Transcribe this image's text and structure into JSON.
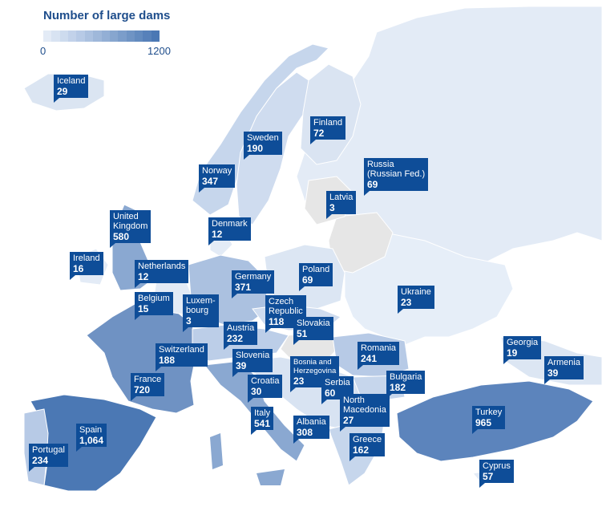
{
  "legend": {
    "title": "Number of large dams",
    "min": "0",
    "max": "1200",
    "color_low": "#e3ebf6",
    "color_high": "#4b78b4"
  },
  "colors": {
    "label_bg": "#0e4d98",
    "no_data": "#e6e6e6",
    "background": "#ffffff"
  },
  "countries": [
    {
      "name": "Iceland",
      "value": "29"
    },
    {
      "name": "Finland",
      "value": "72"
    },
    {
      "name": "Sweden",
      "value": "190"
    },
    {
      "name": "Russia\n(Russian Fed.)",
      "value": "69"
    },
    {
      "name": "Norway",
      "value": "347"
    },
    {
      "name": "Latvia",
      "value": "3"
    },
    {
      "name": "United\nKingdom",
      "value": "580"
    },
    {
      "name": "Denmark",
      "value": "12"
    },
    {
      "name": "Ireland",
      "value": "16"
    },
    {
      "name": "Netherlands",
      "value": "12"
    },
    {
      "name": "Poland",
      "value": "69"
    },
    {
      "name": "Germany",
      "value": "371"
    },
    {
      "name": "Ukraine",
      "value": "23"
    },
    {
      "name": "Belgium",
      "value": "15"
    },
    {
      "name": "Luxem-\nbourg",
      "value": "3"
    },
    {
      "name": "Czech\nRepublic",
      "value": "118"
    },
    {
      "name": "Slovakia",
      "value": "51"
    },
    {
      "name": "Austria",
      "value": "232"
    },
    {
      "name": "Switzerland",
      "value": "188"
    },
    {
      "name": "Slovenia",
      "value": "39"
    },
    {
      "name": "Romania",
      "value": "241"
    },
    {
      "name": "Georgia",
      "value": "19"
    },
    {
      "name": "Bosnia and\nHerzegovina",
      "value": "23"
    },
    {
      "name": "Armenia",
      "value": "39"
    },
    {
      "name": "Croatia",
      "value": "30"
    },
    {
      "name": "Serbia",
      "value": "60"
    },
    {
      "name": "Bulgaria",
      "value": "182"
    },
    {
      "name": "France",
      "value": "720"
    },
    {
      "name": "North\nMacedonia",
      "value": "27"
    },
    {
      "name": "Italy",
      "value": "541"
    },
    {
      "name": "Turkey",
      "value": "965"
    },
    {
      "name": "Spain",
      "value": "1,064"
    },
    {
      "name": "Albania",
      "value": "308"
    },
    {
      "name": "Portugal",
      "value": "234"
    },
    {
      "name": "Greece",
      "value": "162"
    },
    {
      "name": "Cyprus",
      "value": "57"
    }
  ]
}
